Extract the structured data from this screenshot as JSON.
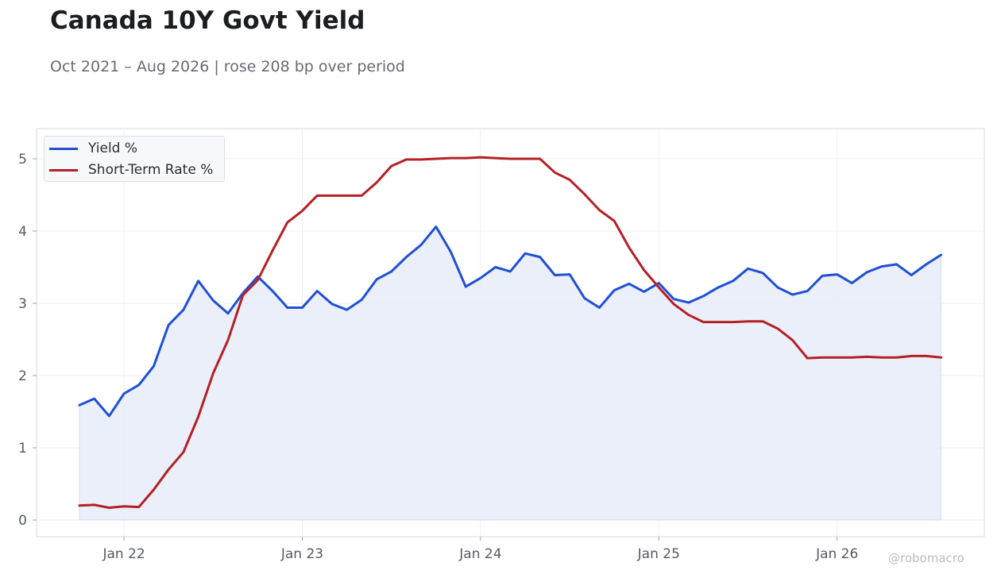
{
  "header": {
    "title": "Canada 10Y Govt Yield",
    "subtitle": "Oct 2021 – Aug 2026 | rose 208 bp over period"
  },
  "watermark": "@robomacro",
  "colors": {
    "yield": "#1f4fd6",
    "short_rate": "#b52025",
    "fill": "#e8edf9",
    "grid": "#eceef1",
    "frame": "#d6d9de"
  },
  "chart_data": {
    "type": "line",
    "title": "Canada 10Y Govt Yield",
    "subtitle": "Oct 2021 – Aug 2026 | rose 208 bp over period",
    "xlabel": "",
    "ylabel": "",
    "ylim": [
      -0.25,
      5.4
    ],
    "yticks": [
      0,
      1,
      2,
      3,
      4,
      5
    ],
    "xticks": [
      "Jan 22",
      "Jan 23",
      "Jan 24",
      "Jan 25",
      "Jan 26"
    ],
    "grid": true,
    "legend_position": "top-left",
    "x": [
      "2021-10",
      "2021-11",
      "2021-12",
      "2022-01",
      "2022-02",
      "2022-03",
      "2022-04",
      "2022-05",
      "2022-06",
      "2022-07",
      "2022-08",
      "2022-09",
      "2022-10",
      "2022-11",
      "2022-12",
      "2023-01",
      "2023-02",
      "2023-03",
      "2023-04",
      "2023-05",
      "2023-06",
      "2023-07",
      "2023-08",
      "2023-09",
      "2023-10",
      "2023-11",
      "2023-12",
      "2024-01",
      "2024-02",
      "2024-03",
      "2024-04",
      "2024-05",
      "2024-06",
      "2024-07",
      "2024-08",
      "2024-09",
      "2024-10",
      "2024-11",
      "2024-12",
      "2025-01",
      "2025-02",
      "2025-03",
      "2025-04",
      "2025-05",
      "2025-06",
      "2025-07",
      "2025-08",
      "2025-09",
      "2025-10",
      "2025-11",
      "2025-12",
      "2026-01",
      "2026-02",
      "2026-03",
      "2026-04",
      "2026-05",
      "2026-06",
      "2026-07",
      "2026-08"
    ],
    "series": [
      {
        "name": "Yield %",
        "fill": true,
        "values": [
          1.59,
          1.68,
          1.44,
          1.75,
          1.87,
          2.13,
          2.7,
          2.91,
          3.31,
          3.04,
          2.86,
          3.14,
          3.37,
          3.17,
          2.94,
          2.94,
          3.17,
          2.99,
          2.91,
          3.05,
          3.33,
          3.44,
          3.64,
          3.81,
          4.06,
          3.71,
          3.23,
          3.35,
          3.5,
          3.44,
          3.69,
          3.64,
          3.39,
          3.4,
          3.07,
          2.94,
          3.18,
          3.27,
          3.16,
          3.28,
          3.06,
          3.01,
          3.1,
          3.22,
          3.31,
          3.48,
          3.42,
          3.22,
          3.12,
          3.17,
          3.38,
          3.4,
          3.28,
          3.43,
          3.51,
          3.54,
          3.39,
          3.54,
          3.67
        ]
      },
      {
        "name": "Short-Term Rate %",
        "fill": false,
        "values": [
          0.2,
          0.21,
          0.17,
          0.19,
          0.18,
          0.42,
          0.7,
          0.94,
          1.43,
          2.03,
          2.49,
          3.11,
          3.32,
          3.73,
          4.12,
          4.28,
          4.49,
          4.49,
          4.49,
          4.49,
          4.67,
          4.9,
          4.99,
          4.99,
          5.0,
          5.01,
          5.01,
          5.02,
          5.01,
          5.0,
          5.0,
          5.0,
          4.81,
          4.71,
          4.51,
          4.29,
          4.14,
          3.77,
          3.46,
          3.22,
          2.99,
          2.84,
          2.74,
          2.74,
          2.74,
          2.75,
          2.75,
          2.65,
          2.49,
          2.24,
          2.25,
          2.25,
          2.25,
          2.26,
          2.25,
          2.25,
          2.27,
          2.27,
          2.25
        ]
      }
    ]
  }
}
